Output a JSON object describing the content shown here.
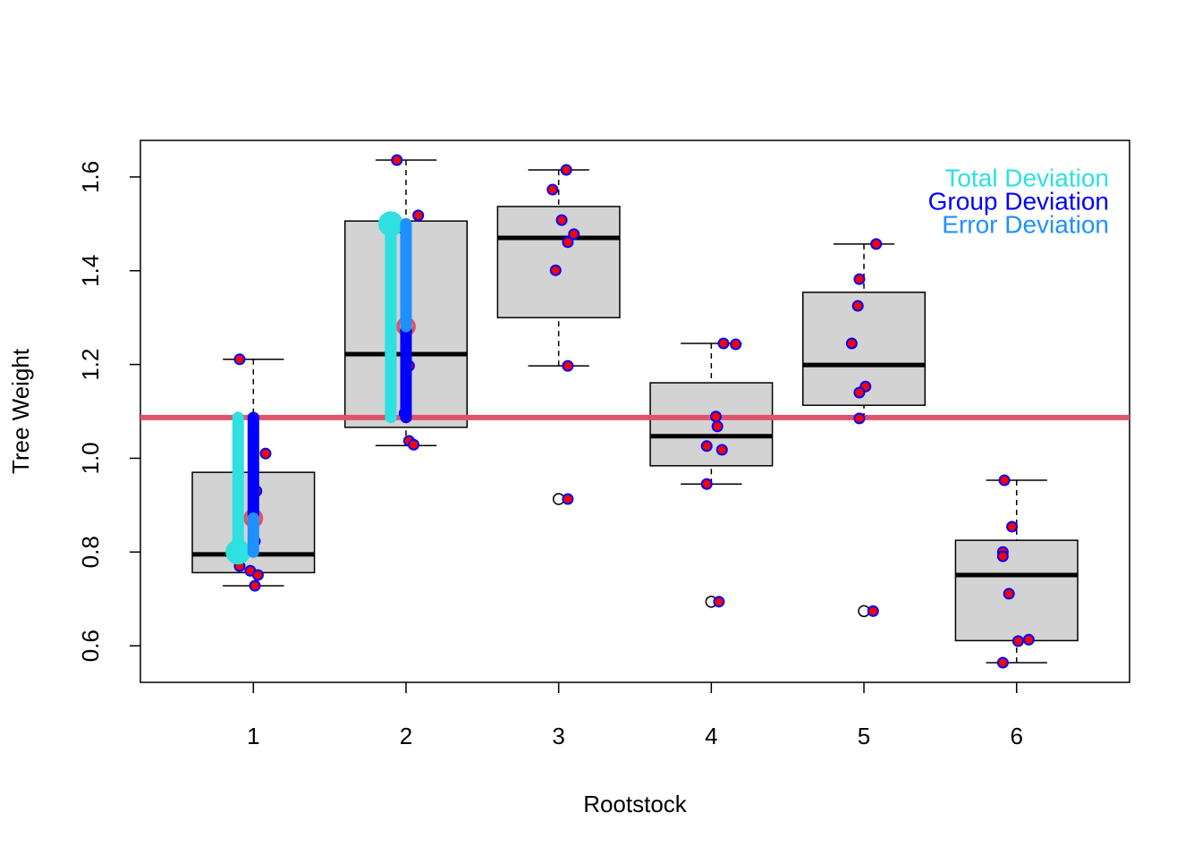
{
  "chart_data": {
    "type": "box",
    "xlabel": "Rootstock",
    "ylabel": "Tree Weight",
    "xlim": [
      0.26,
      6.74
    ],
    "xticks": [
      1,
      2,
      3,
      4,
      5,
      6
    ],
    "ylim": [
      0.522,
      1.678
    ],
    "yticks": [
      0.6,
      0.8,
      {
        "value": 1,
        "label": "1.0"
      },
      1.2,
      1.4,
      1.6
    ],
    "box_color": "#d3d3d3",
    "groups": [
      {
        "box": [
          0.728,
          0.756,
          0.795,
          0.97,
          1.211
        ],
        "outliers": [],
        "points": {
          "x": [
            0.91,
            1.08,
            1.02,
            1.01,
            0.91,
            0.98,
            1.03,
            1.01
          ],
          "y": [
            1.211,
            1.01,
            0.93,
            0.823,
            0.77,
            0.76,
            0.751,
            0.728
          ]
        }
      },
      {
        "box": [
          1.027,
          1.066,
          1.222,
          1.506,
          1.636
        ],
        "outliers": [],
        "points": {
          "x": [
            1.94,
            2.08,
            2.0,
            2.02,
            1.99,
            2.02,
            2.05,
            1.98
          ],
          "y": [
            1.636,
            1.518,
            1.247,
            1.197,
            1.096,
            1.037,
            1.029,
            1.49
          ]
        }
      },
      {
        "box": [
          1.197,
          1.3,
          1.47,
          1.537,
          1.615
        ],
        "outliers": [
          0.913
        ],
        "points": {
          "x": [
            2.96,
            3.05,
            3.02,
            3.1,
            3.06,
            2.98,
            3.06,
            3.06
          ],
          "y": [
            1.573,
            1.615,
            1.508,
            1.478,
            1.461,
            1.401,
            1.197,
            0.913
          ]
        }
      },
      {
        "box": [
          0.945,
          0.984,
          1.047,
          1.161,
          1.245
        ],
        "outliers": [
          0.694
        ],
        "points": {
          "x": [
            4.08,
            4.16,
            4.03,
            4.04,
            3.97,
            4.07,
            3.97,
            4.05
          ],
          "y": [
            1.245,
            1.243,
            1.089,
            1.068,
            1.026,
            1.018,
            0.945,
            0.694
          ]
        }
      },
      {
        "box": [
          1.085,
          1.113,
          1.199,
          1.354,
          1.457
        ],
        "outliers": [
          0.674
        ],
        "points": {
          "x": [
            5.08,
            4.97,
            4.96,
            4.92,
            5.01,
            4.97,
            4.97,
            5.06
          ],
          "y": [
            1.457,
            1.382,
            1.325,
            1.245,
            1.153,
            1.14,
            1.085,
            0.674
          ]
        }
      },
      {
        "box": [
          0.564,
          0.611,
          0.751,
          0.825,
          0.953
        ],
        "outliers": [],
        "points": {
          "x": [
            5.92,
            5.97,
            5.91,
            5.91,
            5.95,
            6.01,
            6.08,
            5.91
          ],
          "y": [
            0.953,
            0.854,
            0.8,
            0.791,
            0.711,
            0.61,
            0.613,
            0.564
          ]
        }
      }
    ],
    "point_fill": "#ff0000",
    "point_stroke": "#0000ff",
    "mean_line": {
      "value": 1.087,
      "color": "#df536b"
    },
    "group_means": {
      "x": [
        1,
        2
      ],
      "y": [
        0.872,
        1.281
      ],
      "color": "#df536b"
    },
    "series": [
      {
        "name": "Total Deviation",
        "color": "#2ee0e0",
        "x": [
          0.9,
          1.9
        ],
        "from": [
          1.087,
          1.087
        ],
        "to": [
          0.8,
          1.5
        ]
      },
      {
        "name": "Group Deviation",
        "color": "#0000ff",
        "x": [
          1.0,
          2.0
        ],
        "from": [
          1.087,
          1.087
        ],
        "to": [
          0.872,
          1.281
        ]
      },
      {
        "name": "Error Deviation",
        "color": "#1e90ff",
        "x": [
          1.0,
          2.0
        ],
        "from": [
          0.872,
          1.281
        ],
        "to": [
          0.8,
          1.5
        ]
      }
    ]
  }
}
